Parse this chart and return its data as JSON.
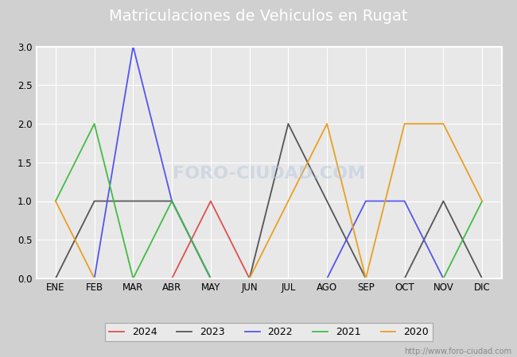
{
  "title": "Matriculaciones de Vehiculos en Rugat",
  "months": [
    "ENE",
    "FEB",
    "MAR",
    "ABR",
    "MAY",
    "JUN",
    "JUL",
    "AGO",
    "SEP",
    "OCT",
    "NOV",
    "DIC"
  ],
  "series": {
    "2024": {
      "values": [
        0,
        0,
        0,
        0,
        1,
        0,
        null,
        null,
        null,
        null,
        null,
        null
      ],
      "color": "#e05050",
      "label": "2024"
    },
    "2023": {
      "values": [
        0,
        1,
        1,
        1,
        0,
        0,
        2,
        1,
        0,
        0,
        1,
        0
      ],
      "color": "#555555",
      "label": "2023"
    },
    "2022": {
      "values": [
        0,
        0,
        3,
        1,
        0,
        0,
        0,
        0,
        1,
        1,
        0,
        0
      ],
      "color": "#5555ee",
      "label": "2022"
    },
    "2021": {
      "values": [
        1,
        2,
        0,
        1,
        0,
        0,
        0,
        0,
        0,
        0,
        0,
        1
      ],
      "color": "#44bb44",
      "label": "2021"
    },
    "2020": {
      "values": [
        1,
        0,
        0,
        0,
        0,
        0,
        1,
        2,
        0,
        2,
        2,
        1
      ],
      "color": "#e8a020",
      "label": "2020"
    }
  },
  "ylim": [
    0,
    3.0
  ],
  "yticks": [
    0.0,
    0.5,
    1.0,
    1.5,
    2.0,
    2.5,
    3.0
  ],
  "fig_bg": "#d0d0d0",
  "plot_bg": "#e8e8e8",
  "title_bg": "#5b7fc4",
  "title_color": "#ffffff",
  "title_fontsize": 14,
  "border_color": "#ffffff",
  "grid_color": "#ffffff",
  "watermark_chart": "FORO-CIUDAD.COM",
  "watermark_url": "http://www.foro-ciudad.com",
  "legend_bg": "#f0f0f0",
  "legend_border": "#999999"
}
